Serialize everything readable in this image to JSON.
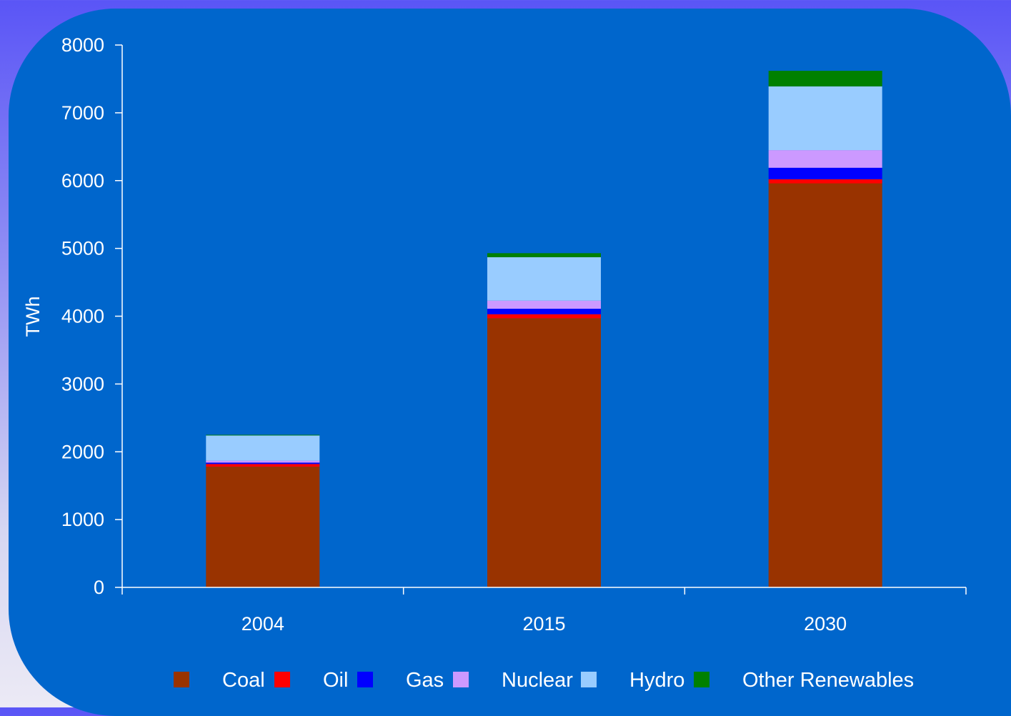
{
  "colors": {
    "background": "#0066cc",
    "axis": "#ffffff",
    "series": {
      "Coal": "#993300",
      "Oil": "#ff0000",
      "Gas": "#0000ff",
      "Nuclear": "#cc99ff",
      "Hydro": "#99ccff",
      "Other Renewables": "#008000"
    }
  },
  "chart_data": {
    "type": "bar",
    "stacked": true,
    "title": "",
    "xlabel": "",
    "ylabel": "TWh",
    "ylim": [
      0,
      8000
    ],
    "yticks": [
      0,
      1000,
      2000,
      3000,
      4000,
      5000,
      6000,
      7000,
      8000
    ],
    "categories": [
      "2004",
      "2015",
      "2030"
    ],
    "series": [
      {
        "name": "Coal",
        "values": [
          1780,
          3970,
          5960
        ]
      },
      {
        "name": "Oil",
        "values": [
          40,
          60,
          60
        ]
      },
      {
        "name": "Gas",
        "values": [
          20,
          80,
          170
        ]
      },
      {
        "name": "Nuclear",
        "values": [
          30,
          120,
          260
        ]
      },
      {
        "name": "Hydro",
        "values": [
          370,
          640,
          940
        ]
      },
      {
        "name": "Other Renewables",
        "values": [
          10,
          60,
          230
        ]
      }
    ],
    "grid": false,
    "legend": "bottom"
  }
}
